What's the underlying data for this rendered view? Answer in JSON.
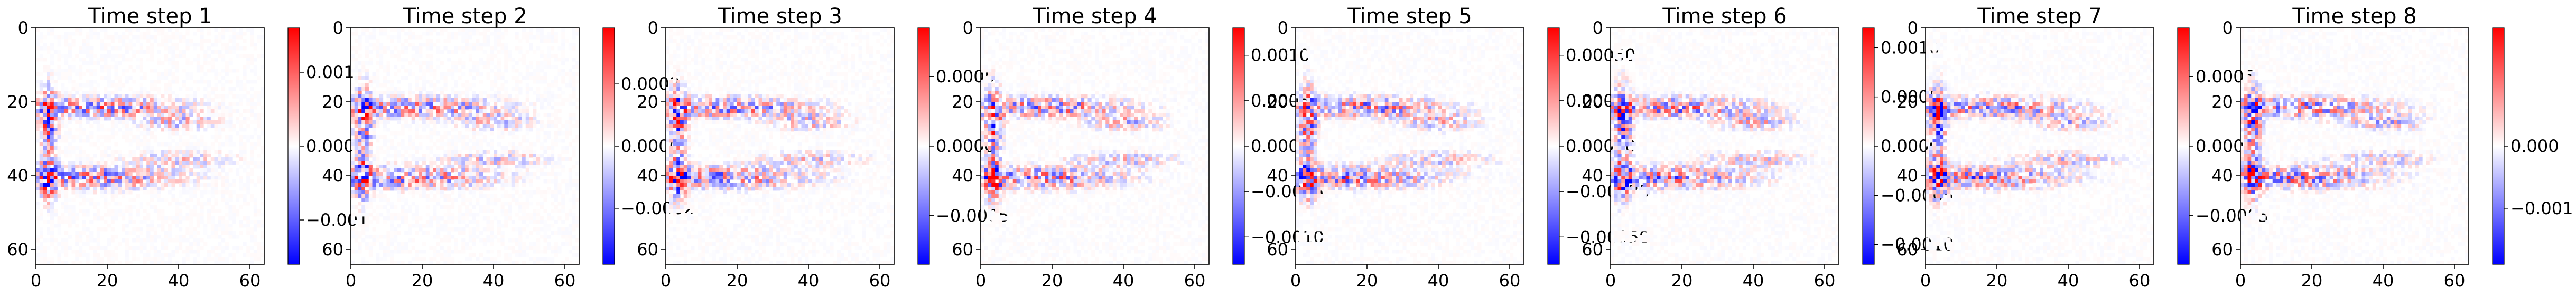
{
  "colors": {
    "cmap": [
      "#0000ff",
      "#ffffff",
      "#ff0000"
    ],
    "axis": "#000000",
    "background": "#ffffff"
  },
  "chart_data": [
    {
      "type": "heatmap",
      "title": "Time step 1",
      "xlabel": "",
      "ylabel": "",
      "x_ticks": [
        "0",
        "20",
        "40",
        "60"
      ],
      "y_ticks": [
        "0",
        "20",
        "40",
        "60"
      ],
      "xlim": [
        0,
        64
      ],
      "ylim": [
        64,
        0
      ],
      "colorbar_ticks": [
        "0.001",
        "0.000",
        "−0.001"
      ],
      "colorbar_tick_values": [
        0.001,
        0.0,
        -0.001
      ],
      "colorbar_range": [
        -0.0016,
        0.0016
      ],
      "grid": false
    },
    {
      "type": "heatmap",
      "title": "Time step 2",
      "xlabel": "",
      "ylabel": "",
      "x_ticks": [
        "0",
        "20",
        "40",
        "60"
      ],
      "y_ticks": [
        "0",
        "20",
        "40",
        "60"
      ],
      "xlim": [
        0,
        64
      ],
      "ylim": [
        64,
        0
      ],
      "colorbar_ticks": [
        "0.0002",
        "0.0000",
        "−0.0002"
      ],
      "colorbar_tick_values": [
        0.0002,
        0.0,
        -0.0002
      ],
      "colorbar_range": [
        -0.00038,
        0.00038
      ],
      "grid": false
    },
    {
      "type": "heatmap",
      "title": "Time step 3",
      "xlabel": "",
      "ylabel": "",
      "x_ticks": [
        "0",
        "20",
        "40",
        "60"
      ],
      "y_ticks": [
        "0",
        "20",
        "40",
        "60"
      ],
      "xlim": [
        0,
        64
      ],
      "ylim": [
        64,
        0
      ],
      "colorbar_ticks": [
        "0.0005",
        "0.0000",
        "−0.0005"
      ],
      "colorbar_tick_values": [
        0.0005,
        0.0,
        -0.0005
      ],
      "colorbar_range": [
        -0.00085,
        0.00085
      ],
      "grid": false
    },
    {
      "type": "heatmap",
      "title": "Time step 4",
      "xlabel": "",
      "ylabel": "",
      "x_ticks": [
        "0",
        "20",
        "40",
        "60"
      ],
      "y_ticks": [
        "0",
        "20",
        "40",
        "60"
      ],
      "xlim": [
        0,
        64
      ],
      "ylim": [
        64,
        0
      ],
      "colorbar_ticks": [
        "0.0010",
        "0.0005",
        "0.0000",
        "−0.0005",
        "−0.0010"
      ],
      "colorbar_tick_values": [
        0.001,
        0.0005,
        0.0,
        -0.0005,
        -0.001
      ],
      "colorbar_range": [
        -0.0013,
        0.0013
      ],
      "grid": false
    },
    {
      "type": "heatmap",
      "title": "Time step 5",
      "xlabel": "",
      "ylabel": "",
      "x_ticks": [
        "0",
        "20",
        "40",
        "60"
      ],
      "y_ticks": [
        "0",
        "20",
        "40",
        "60"
      ],
      "xlim": [
        0,
        64
      ],
      "ylim": [
        64,
        0
      ],
      "colorbar_ticks": [
        "0.00050",
        "0.00025",
        "0.00000",
        "−0.00025",
        "−0.00050"
      ],
      "colorbar_tick_values": [
        0.0005,
        0.00025,
        0.0,
        -0.00025,
        -0.0005
      ],
      "colorbar_range": [
        -0.00065,
        0.00065
      ],
      "grid": false
    },
    {
      "type": "heatmap",
      "title": "Time step 6",
      "xlabel": "",
      "ylabel": "",
      "x_ticks": [
        "0",
        "20",
        "40",
        "60"
      ],
      "y_ticks": [
        "0",
        "20",
        "40",
        "60"
      ],
      "xlim": [
        0,
        64
      ],
      "ylim": [
        64,
        0
      ],
      "colorbar_ticks": [
        "0.0010",
        "0.0005",
        "0.0000",
        "−0.0005",
        "−0.0010"
      ],
      "colorbar_tick_values": [
        0.001,
        0.0005,
        0.0,
        -0.0005,
        -0.001
      ],
      "colorbar_range": [
        -0.0012,
        0.0012
      ],
      "grid": false
    },
    {
      "type": "heatmap",
      "title": "Time step 7",
      "xlabel": "",
      "ylabel": "",
      "x_ticks": [
        "0",
        "20",
        "40",
        "60"
      ],
      "y_ticks": [
        "0",
        "20",
        "40",
        "60"
      ],
      "xlim": [
        0,
        64
      ],
      "ylim": [
        64,
        0
      ],
      "colorbar_ticks": [
        "0.0005",
        "0.0000",
        "−0.0005"
      ],
      "colorbar_tick_values": [
        0.0005,
        0.0,
        -0.0005
      ],
      "colorbar_range": [
        -0.00085,
        0.00085
      ],
      "grid": false
    },
    {
      "type": "heatmap",
      "title": "Time step 8",
      "xlabel": "",
      "ylabel": "",
      "x_ticks": [
        "0",
        "20",
        "40",
        "60"
      ],
      "y_ticks": [
        "0",
        "20",
        "40",
        "60"
      ],
      "xlim": [
        0,
        64
      ],
      "ylim": [
        64,
        0
      ],
      "colorbar_ticks": [
        "0.000",
        "−0.001"
      ],
      "colorbar_tick_values": [
        0.0,
        -0.001
      ],
      "colorbar_range": [
        -0.0019,
        0.0019
      ],
      "grid": false
    }
  ]
}
